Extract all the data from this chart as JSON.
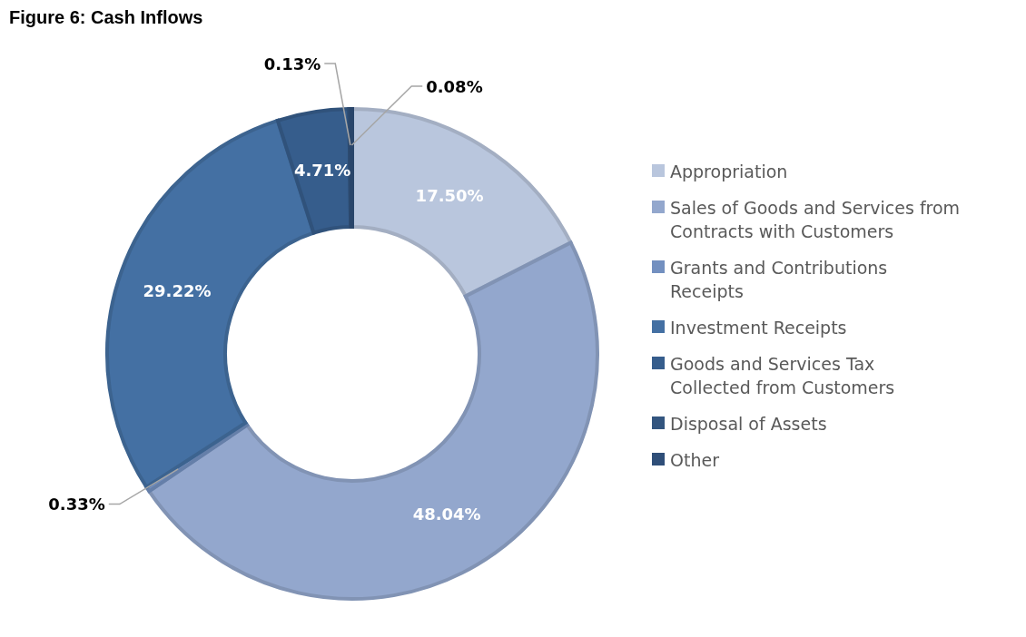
{
  "chart_data": {
    "type": "donut",
    "title": "Figure 6: Cash Inflows",
    "categories": [
      "Appropriation",
      "Sales of Goods and Services from Contracts with Customers",
      "Grants and Contributions Receipts",
      "Investment Receipts",
      "Goods and Services Tax Collected from Customers",
      "Disposal of Assets",
      "Other"
    ],
    "values": [
      17.5,
      48.04,
      0.33,
      29.22,
      4.71,
      0.13,
      0.08
    ],
    "value_labels": [
      "17.50%",
      "48.04%",
      "0.33%",
      "29.22%",
      "4.71%",
      "0.13%",
      "0.08%"
    ],
    "colors": [
      "#b9c6dd",
      "#93a7cd",
      "#7390c0",
      "#4470a3",
      "#365d8c",
      "#33557f",
      "#2f4e78"
    ],
    "legend": "right"
  }
}
